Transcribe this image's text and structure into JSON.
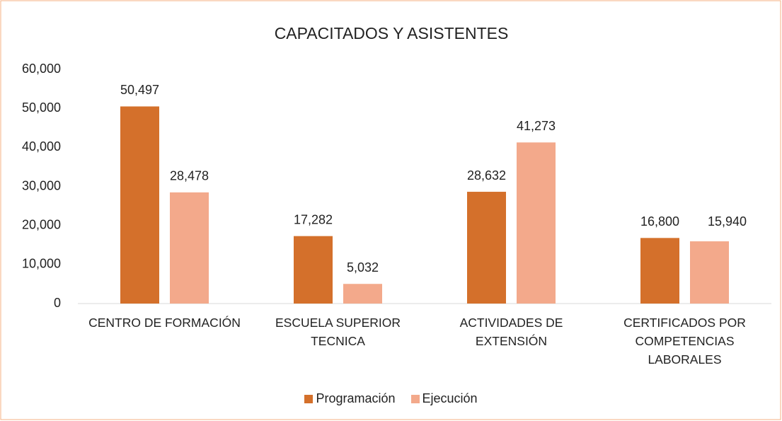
{
  "chart_data": {
    "type": "bar",
    "title": "CAPACITADOS Y ASISTENTES",
    "categories": [
      "CENTRO DE FORMACIÓN",
      "ESCUELA SUPERIOR TECNICA",
      "ACTIVIDADES DE EXTENSIÓN",
      "CERTIFICADOS POR COMPETENCIAS LABORALES"
    ],
    "series": [
      {
        "name": "Programación",
        "color": "#d4702b",
        "values": [
          50497,
          17282,
          28632,
          16800
        ],
        "value_labels": [
          "50,497",
          "17,282",
          "28,632",
          "16,800"
        ]
      },
      {
        "name": "Ejecución",
        "color": "#f3a98b",
        "values": [
          28478,
          5032,
          41273,
          15940
        ],
        "value_labels": [
          "28,478",
          "5,032",
          "41,273",
          "15,940"
        ]
      }
    ],
    "ylim": [
      0,
      60000
    ],
    "yticks": [
      0,
      {
        "value": 10000,
        "label": "10,000"
      },
      {
        "value": 20000,
        "label": "20,000"
      },
      {
        "value": 30000,
        "label": "30,000"
      },
      {
        "value": 40000,
        "label": "40,000"
      },
      {
        "value": 50000,
        "label": "50,000"
      },
      {
        "value": 60000,
        "label": "60,000"
      }
    ],
    "grid": false,
    "legend": "bottom"
  }
}
